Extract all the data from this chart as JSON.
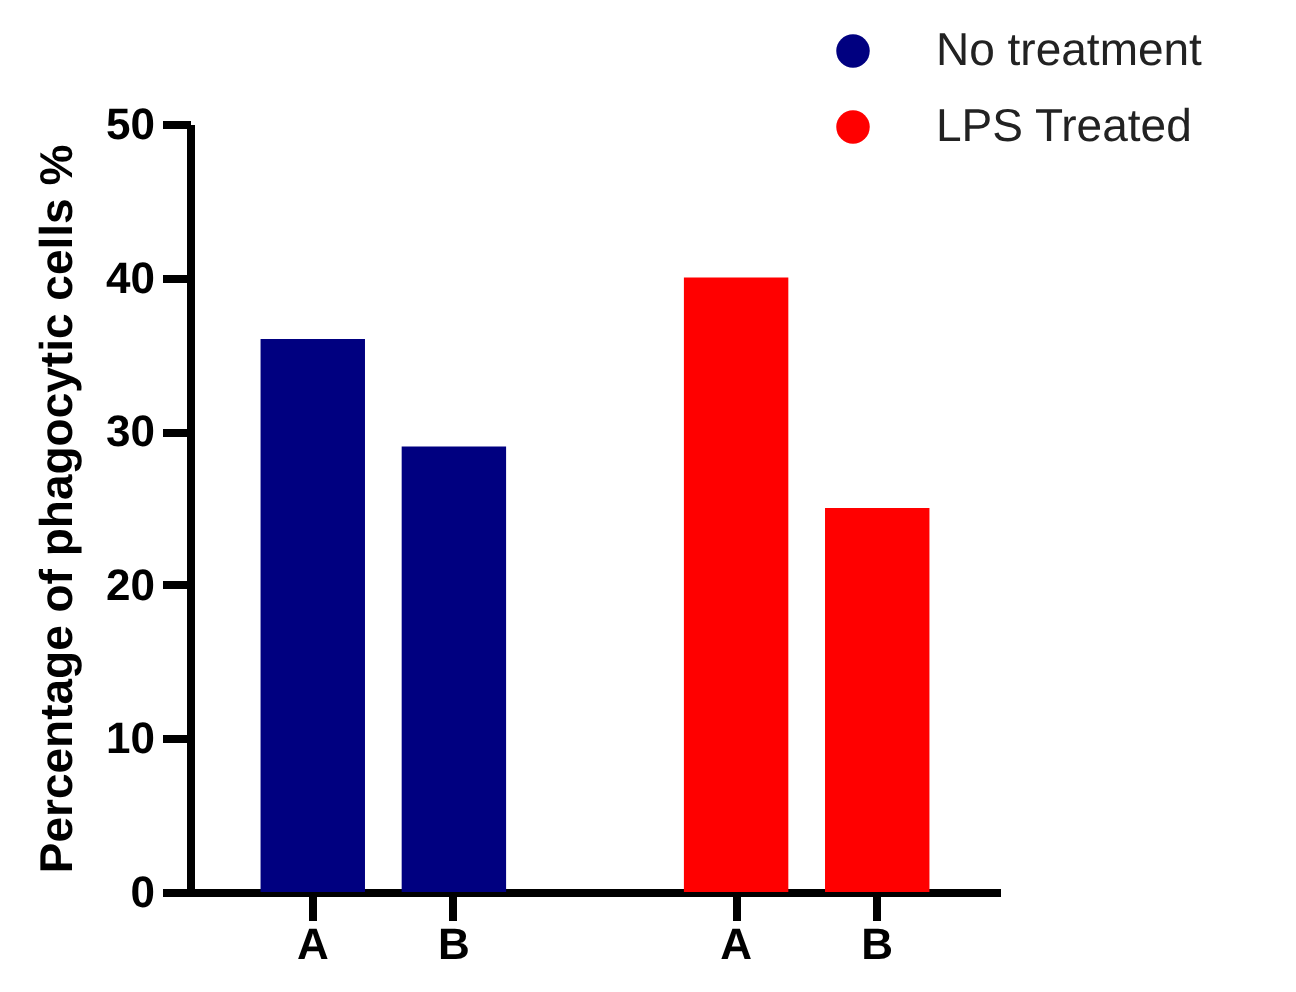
{
  "chart_data": {
    "type": "bar",
    "categories": [
      "A",
      "B",
      null,
      "A",
      "B"
    ],
    "ylabel": "Percentage of phagocytic cells %",
    "ylim": [
      0,
      50
    ],
    "yticks": [
      0,
      10,
      20,
      30,
      40,
      50
    ],
    "grid": false,
    "legend": "top right",
    "marker": "circle",
    "series": [
      {
        "name": "No treatment",
        "color": "#000080",
        "values": [
          36,
          29,
          null,
          null,
          null
        ]
      },
      {
        "name": "LPS Treated",
        "color": "#ff0000",
        "values": [
          null,
          null,
          null,
          40,
          25
        ]
      }
    ]
  }
}
